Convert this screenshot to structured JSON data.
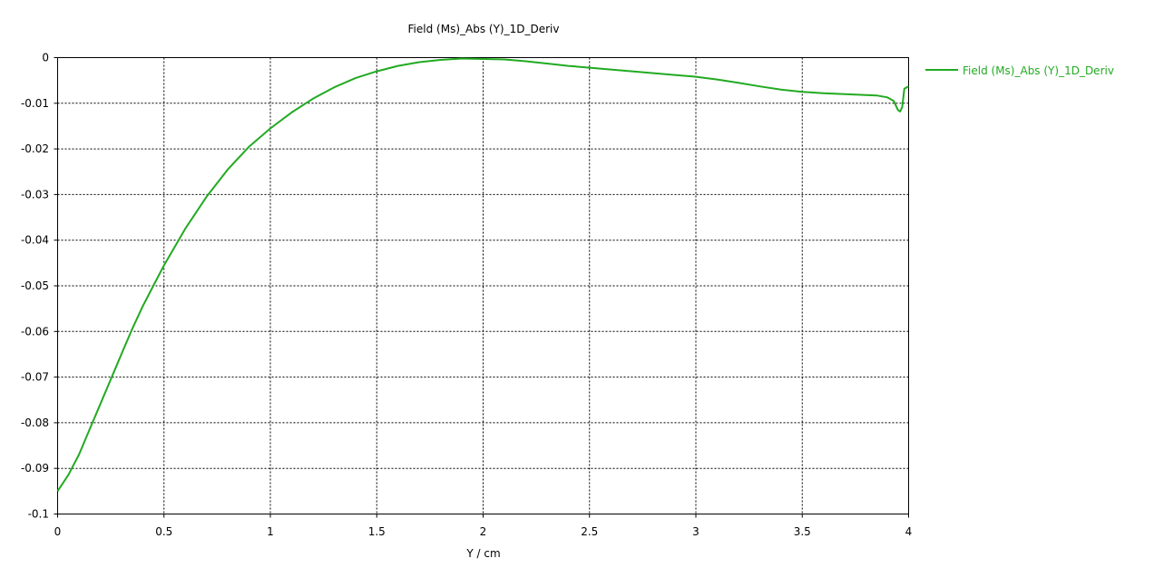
{
  "chart_data": {
    "type": "line",
    "title": "Field (Ms)_Abs (Y)_1D_Deriv",
    "xlabel": "Y / cm",
    "ylabel": "",
    "xlim": [
      0,
      4
    ],
    "ylim": [
      -0.1,
      0
    ],
    "xticks": [
      0,
      0.5,
      1,
      1.5,
      2,
      2.5,
      3,
      3.5,
      4
    ],
    "xtick_labels": [
      "0",
      "0.5",
      "1",
      "1.5",
      "2",
      "2.5",
      "3",
      "3.5",
      "4"
    ],
    "yticks": [
      0,
      -0.01,
      -0.02,
      -0.03,
      -0.04,
      -0.05,
      -0.06,
      -0.07,
      -0.08,
      -0.09,
      -0.1
    ],
    "ytick_labels": [
      "0",
      "-0.01",
      "-0.02",
      "-0.03",
      "-0.04",
      "-0.05",
      "-0.06",
      "-0.07",
      "-0.08",
      "-0.09",
      "-0.1"
    ],
    "grid": true,
    "legend_position": "right",
    "series": [
      {
        "name": "Field (Ms)_Abs (Y)_1D_Deriv",
        "color": "#22aa22",
        "x": [
          0.0,
          0.05,
          0.1,
          0.15,
          0.2,
          0.25,
          0.3,
          0.35,
          0.4,
          0.45,
          0.5,
          0.6,
          0.7,
          0.8,
          0.9,
          1.0,
          1.1,
          1.2,
          1.3,
          1.4,
          1.5,
          1.6,
          1.7,
          1.8,
          1.9,
          2.0,
          2.1,
          2.2,
          2.3,
          2.4,
          2.5,
          2.6,
          2.7,
          2.8,
          2.9,
          3.0,
          3.1,
          3.2,
          3.3,
          3.4,
          3.5,
          3.6,
          3.7,
          3.8,
          3.85,
          3.9,
          3.93,
          3.95,
          3.96,
          3.97,
          3.98,
          4.0
        ],
        "y": [
          -0.095,
          -0.0915,
          -0.087,
          -0.0815,
          -0.076,
          -0.0705,
          -0.065,
          -0.0595,
          -0.0545,
          -0.05,
          -0.0455,
          -0.0375,
          -0.0305,
          -0.0245,
          -0.0195,
          -0.0155,
          -0.012,
          -0.009,
          -0.0065,
          -0.0045,
          -0.003,
          -0.0018,
          -0.001,
          -0.0005,
          -0.0002,
          -0.0003,
          -0.0004,
          -0.0008,
          -0.0013,
          -0.0018,
          -0.0022,
          -0.0026,
          -0.003,
          -0.0034,
          -0.0038,
          -0.0042,
          -0.0048,
          -0.0055,
          -0.0063,
          -0.007,
          -0.0075,
          -0.0078,
          -0.008,
          -0.0082,
          -0.0083,
          -0.0087,
          -0.0095,
          -0.0115,
          -0.0118,
          -0.0108,
          -0.0068,
          -0.0063
        ]
      }
    ]
  }
}
